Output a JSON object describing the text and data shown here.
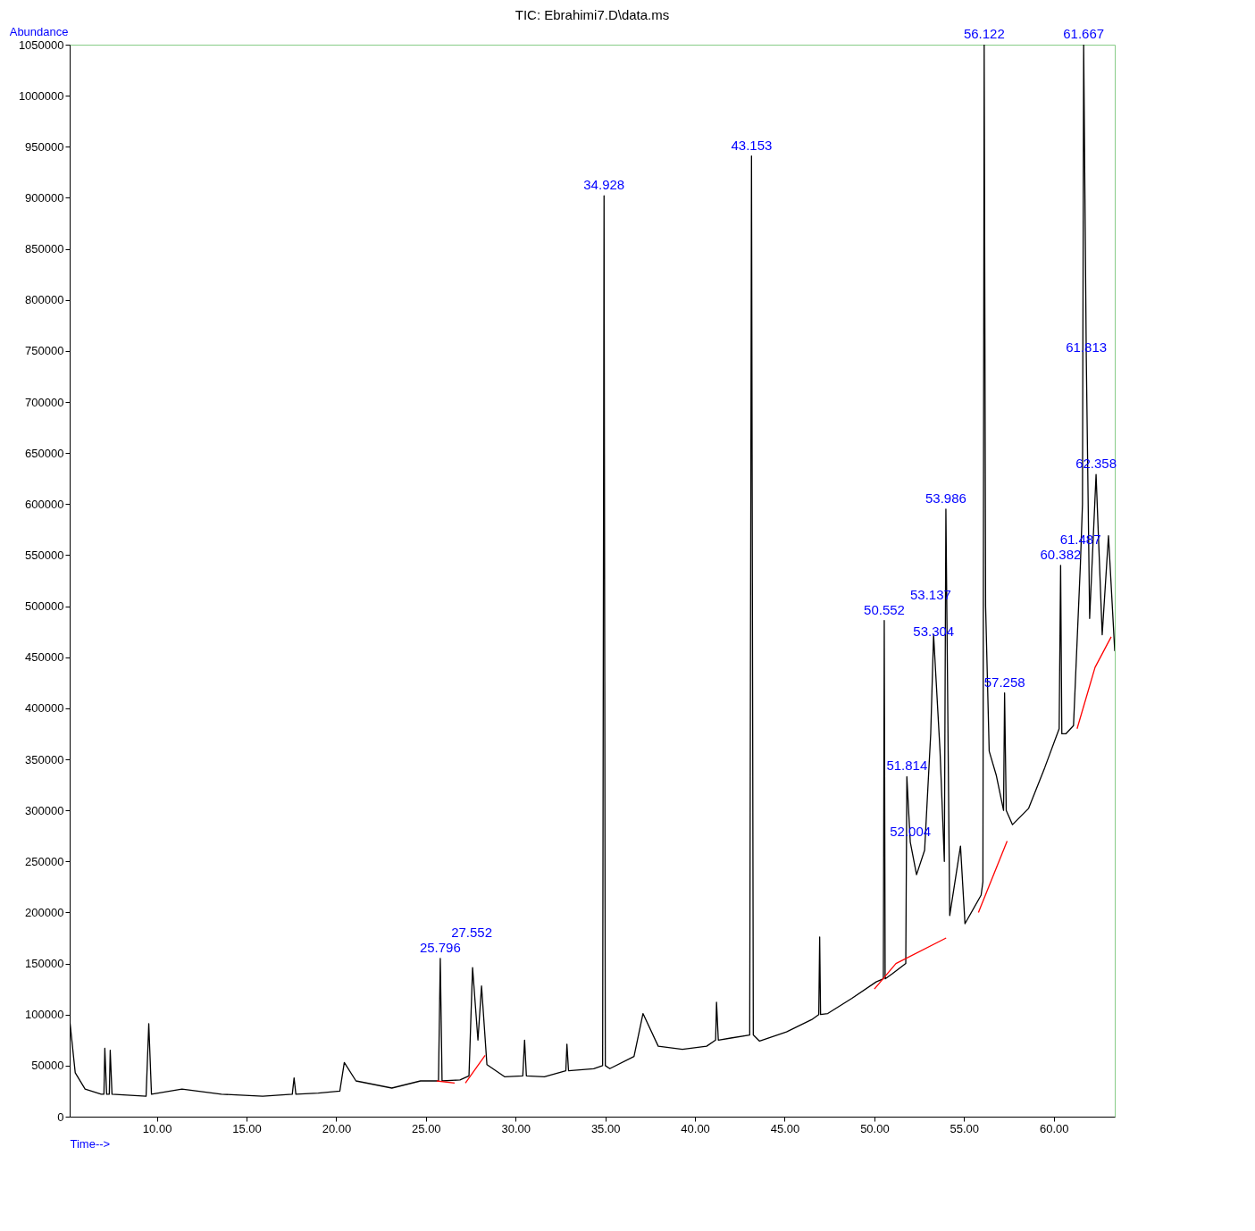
{
  "chart_data": {
    "type": "line",
    "title": "TIC: Ebrahimi7.D\\data.ms",
    "xlabel": "Time-->",
    "ylabel": "Abundance",
    "xlim": [
      5.14,
      63.4
    ],
    "ylim": [
      0,
      1050000
    ],
    "xticks": [
      {
        "value": 10,
        "label": "10.00"
      },
      {
        "value": 15,
        "label": "15.00"
      },
      {
        "value": 20,
        "label": "20.00"
      },
      {
        "value": 25,
        "label": "25.00"
      },
      {
        "value": 30,
        "label": "30.00"
      },
      {
        "value": 35,
        "label": "35.00"
      },
      {
        "value": 40,
        "label": "40.00"
      },
      {
        "value": 45,
        "label": "45.00"
      },
      {
        "value": 50,
        "label": "50.00"
      },
      {
        "value": 55,
        "label": "55.00"
      },
      {
        "value": 60,
        "label": "60.00"
      }
    ],
    "yticks": [
      0,
      50000,
      100000,
      150000,
      200000,
      250000,
      300000,
      350000,
      400000,
      450000,
      500000,
      550000,
      600000,
      650000,
      700000,
      750000,
      800000,
      850000,
      900000,
      950000,
      1000000,
      1050000
    ],
    "marker": "none",
    "line_style": "solid",
    "series": [
      {
        "color": "#000000",
        "x": [
          5.14,
          5.45,
          6.0,
          6.9,
          7.05,
          7.1,
          7.2,
          7.35,
          7.4,
          7.5,
          9.4,
          9.55,
          9.7,
          11.4,
          13.6,
          15.9,
          17.55,
          17.65,
          17.75,
          19.0,
          20.2,
          20.45,
          21.1,
          23.1,
          24.7,
          25.7,
          25.8,
          25.9,
          26.9,
          27.4,
          27.6,
          27.9,
          28.1,
          28.4,
          29.4,
          30.4,
          30.5,
          30.6,
          31.6,
          32.8,
          32.86,
          32.95,
          34.35,
          34.85,
          34.93,
          35.0,
          35.25,
          36.6,
          37.1,
          37.95,
          39.3,
          40.65,
          41.15,
          41.2,
          41.3,
          42.0,
          43.05,
          43.15,
          43.25,
          43.6,
          45.1,
          46.5,
          46.9,
          46.95,
          47.0,
          47.4,
          48.75,
          50.1,
          50.5,
          50.55,
          50.6,
          51.0,
          51.75,
          51.81,
          52.0,
          52.35,
          52.8,
          53.14,
          53.3,
          53.66,
          53.9,
          53.986,
          54.2,
          54.8,
          55.05,
          55.95,
          56.05,
          56.12,
          56.2,
          56.4,
          56.8,
          57.2,
          57.258,
          57.35,
          57.7,
          58.6,
          59.5,
          60.3,
          60.382,
          60.45,
          60.67,
          61.1,
          61.487,
          61.6,
          61.667,
          61.813,
          62.0,
          62.358,
          62.7,
          63.05,
          63.4
        ],
        "values": [
          95000,
          43000,
          27000,
          22000,
          22000,
          67000,
          22000,
          22000,
          65000,
          22000,
          20000,
          91000,
          22000,
          27000,
          22000,
          20000,
          22000,
          38000,
          22000,
          23000,
          25000,
          53000,
          35000,
          28000,
          35000,
          35000,
          155000,
          35000,
          36000,
          40000,
          146000,
          75000,
          128000,
          51000,
          39000,
          40000,
          75000,
          40000,
          39000,
          45000,
          71000,
          45000,
          47000,
          50000,
          902000,
          50000,
          47000,
          59000,
          101000,
          69000,
          66000,
          69000,
          75000,
          112000,
          75000,
          77000,
          80000,
          941000,
          80000,
          74000,
          83000,
          95000,
          100000,
          176000,
          100000,
          101000,
          116000,
          132000,
          135000,
          486000,
          135000,
          140000,
          150000,
          333000,
          269000,
          237000,
          261000,
          375000,
          472000,
          358000,
          250000,
          595000,
          197000,
          265000,
          189000,
          217000,
          230000,
          1050000,
          500000,
          358000,
          334000,
          300000,
          415000,
          300000,
          286000,
          302000,
          342000,
          380000,
          540000,
          375000,
          375000,
          383000,
          542000,
          600000,
          1050000,
          743000,
          488000,
          629000,
          472000,
          569000,
          456000
        ]
      },
      {
        "color": "#ff0000",
        "x": [
          25.6,
          26.6,
          null,
          27.2,
          28.3,
          null,
          50.0,
          51.2,
          54.0,
          null,
          55.8,
          57.4,
          null,
          61.3,
          62.3,
          63.2
        ],
        "values": [
          35000,
          33000,
          null,
          33000,
          60000,
          null,
          125000,
          150000,
          175000,
          null,
          200000,
          270000,
          null,
          380000,
          440000,
          470000
        ]
      }
    ],
    "annotations": [
      {
        "text": "25.796",
        "x": 25.796,
        "y": 155000
      },
      {
        "text": "27.552",
        "x": 27.552,
        "y": 146000
      },
      {
        "text": "34.928",
        "x": 34.928,
        "y": 902000
      },
      {
        "text": "43.153",
        "x": 43.153,
        "y": 941000
      },
      {
        "text": "50.552",
        "x": 50.552,
        "y": 486000
      },
      {
        "text": "51.814",
        "x": 51.814,
        "y": 333000
      },
      {
        "text": "52.004",
        "x": 52.004,
        "y": 269000
      },
      {
        "text": "53.137",
        "x": 53.137,
        "y": 472000
      },
      {
        "text": "53.304",
        "x": 53.304,
        "y": 465000
      },
      {
        "text": "53.986",
        "x": 53.986,
        "y": 595000
      },
      {
        "text": "56.122",
        "x": 56.122,
        "y": 1050000
      },
      {
        "text": "57.258",
        "x": 57.258,
        "y": 415000
      },
      {
        "text": "60.382",
        "x": 60.382,
        "y": 540000
      },
      {
        "text": "61.487",
        "x": 61.487,
        "y": 542000
      },
      {
        "text": "61.667",
        "x": 61.667,
        "y": 1050000
      },
      {
        "text": "61.813",
        "x": 61.813,
        "y": 743000
      },
      {
        "text": "62.358",
        "x": 62.358,
        "y": 629000
      }
    ]
  }
}
